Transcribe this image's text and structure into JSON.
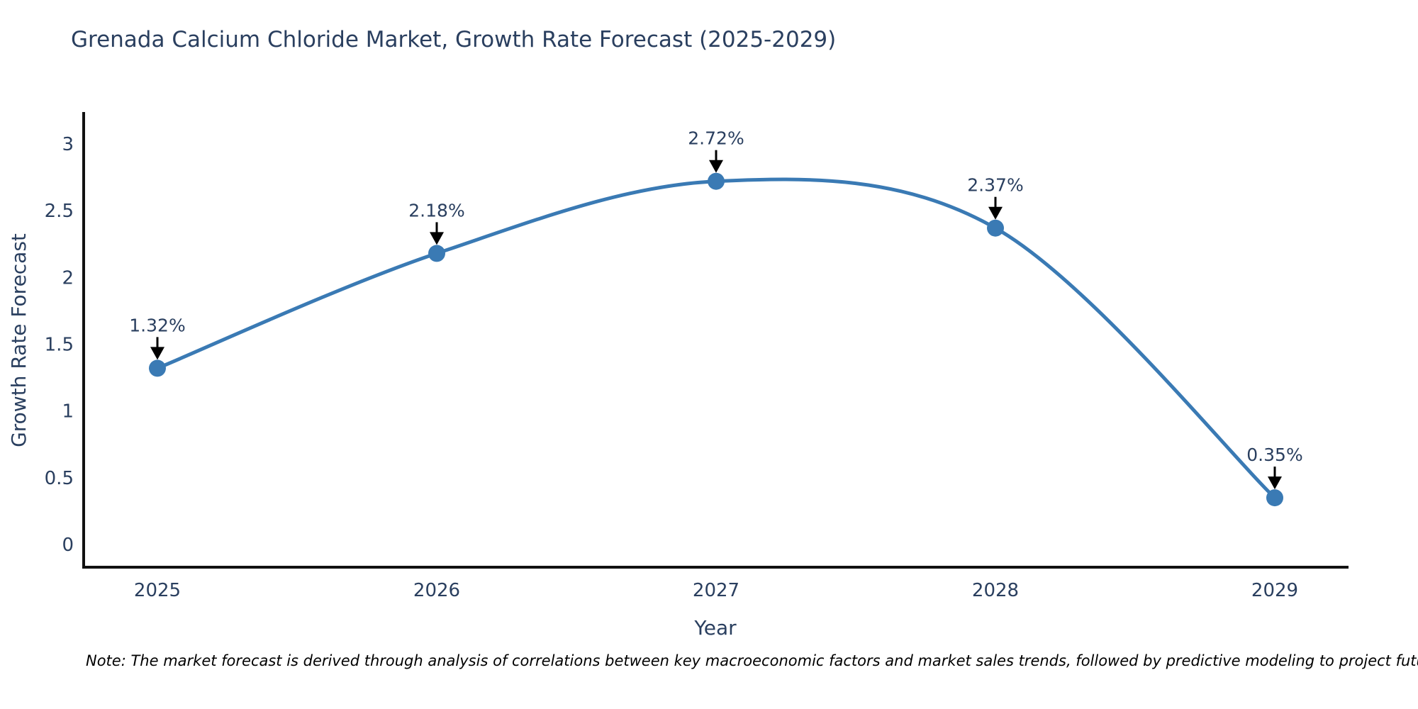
{
  "title": "Grenada Calcium Chloride Market, Growth Rate Forecast (2025-2029)",
  "note": "Note: The market forecast is derived through analysis of correlations between key macroeconomic factors and market sales trends, followed by predictive modeling to project future sales",
  "colors": {
    "line": "#3a7ab4",
    "marker": "#3a7ab4",
    "axis": "#111111",
    "text": "#2a3f5f",
    "arrow": "#000000",
    "note_text": "#000000",
    "background": "#ffffff"
  },
  "chart_data": {
    "type": "line",
    "line_shape": "spline",
    "x": [
      "2025",
      "2026",
      "2027",
      "2028",
      "2029"
    ],
    "values": [
      1.32,
      2.18,
      2.72,
      2.37,
      0.35
    ],
    "point_labels": [
      "1.32%",
      "2.18%",
      "2.72%",
      "2.37%",
      "0.35%"
    ],
    "series_name": "Growth Rate Forecast",
    "title": "Grenada Calcium Chloride Market, Growth Rate Forecast (2025-2029)",
    "xlabel": "Year",
    "ylabel": "Growth Rate Forecast",
    "yticks": [
      0,
      0.5,
      1,
      1.5,
      2,
      2.5,
      3
    ],
    "ytick_labels": [
      "0",
      "0.5",
      "1",
      "1.5",
      "2",
      "2.5",
      "3"
    ],
    "ylim": [
      -0.17,
      3.23
    ],
    "grid": false,
    "legend_position": "none",
    "markers": true,
    "annotations_have_arrows": true
  }
}
